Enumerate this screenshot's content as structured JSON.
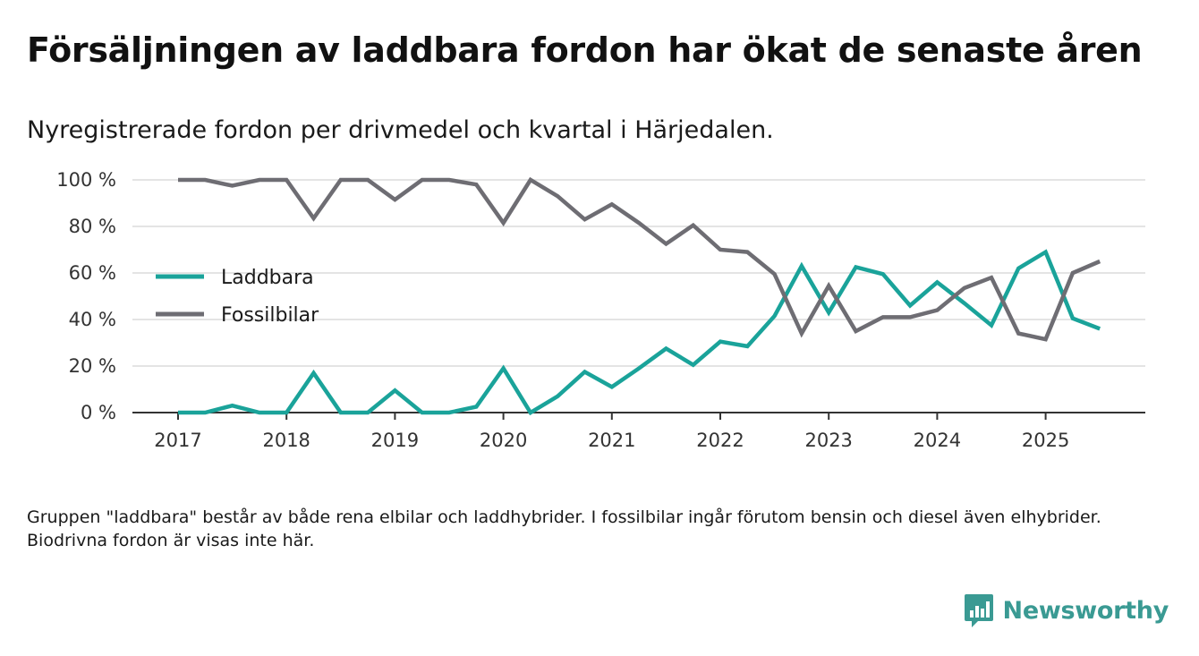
{
  "title": "Försäljningen av laddbara fordon har ökat de senaste åren",
  "subtitle": "Nyregistrerade fordon per drivmedel och kvartal i Härjedalen.",
  "note": "Gruppen \"laddbara\" består av både rena elbilar och laddhybrider. I fossilbilar ingår förutom bensin och diesel även elhybrider. Biodrivna fordon är visas inte här.",
  "brand": "Newsworthy",
  "colors": {
    "laddbara": "#1aa39a",
    "fossil": "#6e6d73",
    "brand": "#3a9a93"
  },
  "chart_data": {
    "type": "line",
    "title": "Försäljningen av laddbara fordon har ökat de senaste åren",
    "xlabel": "",
    "ylabel": "",
    "ylim": [
      0,
      100
    ],
    "yticks": [
      0,
      20,
      40,
      60,
      80,
      100
    ],
    "ytick_labels": [
      "0 %",
      "20 %",
      "40 %",
      "60 %",
      "80 %",
      "100 %"
    ],
    "xlim": [
      2016.6,
      2025.9
    ],
    "xticks": [
      2017,
      2018,
      2019,
      2020,
      2021,
      2022,
      2023,
      2024,
      2025
    ],
    "xtick_labels": [
      "2017",
      "2018",
      "2019",
      "2020",
      "2021",
      "2022",
      "2023",
      "2024",
      "2025"
    ],
    "x": [
      2017.0,
      2017.25,
      2017.5,
      2017.75,
      2018.0,
      2018.25,
      2018.5,
      2018.75,
      2019.0,
      2019.25,
      2019.5,
      2019.75,
      2020.0,
      2020.25,
      2020.5,
      2020.75,
      2021.0,
      2021.25,
      2021.5,
      2021.75,
      2022.0,
      2022.25,
      2022.5,
      2022.75,
      2023.0,
      2023.25,
      2023.5,
      2023.75,
      2024.0,
      2024.25,
      2024.5,
      2024.75,
      2025.0,
      2025.25,
      2025.5
    ],
    "legend_position": "left",
    "series": [
      {
        "name": "Laddbara",
        "color": "#1aa39a",
        "values": [
          0,
          0,
          3,
          0,
          0,
          17,
          0,
          0,
          9.5,
          0,
          0,
          2.5,
          19,
          0,
          7,
          17.5,
          11,
          19,
          27.5,
          20.5,
          30.5,
          28.5,
          41.5,
          63,
          43,
          62.5,
          59.5,
          46,
          56,
          47,
          37.5,
          62,
          69,
          40.5,
          36
        ]
      },
      {
        "name": "Fossilbilar",
        "color": "#6e6d73",
        "values": [
          100,
          100,
          97.5,
          100,
          100,
          83.5,
          100,
          100,
          91.5,
          100,
          100,
          98,
          81.5,
          100,
          93,
          83,
          89.5,
          81.5,
          72.5,
          80.5,
          70,
          69,
          59.5,
          34,
          54.5,
          35,
          41,
          41,
          44,
          53.5,
          58,
          34,
          31.5,
          60,
          65
        ]
      }
    ]
  }
}
